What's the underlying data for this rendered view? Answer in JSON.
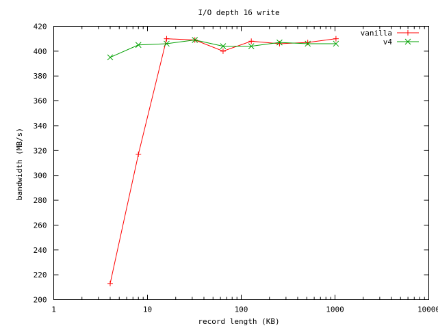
{
  "chart_data": {
    "type": "line",
    "title": "I/O depth 16 write",
    "xlabel": "record length (KB)",
    "ylabel": "bandwidth (MB/s)",
    "x_scale": "log",
    "xlim": [
      1,
      10000
    ],
    "ylim": [
      200,
      420
    ],
    "x_ticks": [
      1,
      10,
      100,
      1000,
      10000
    ],
    "x_tick_labels": [
      "1",
      "10",
      "100",
      "1000",
      "10000"
    ],
    "y_ticks": [
      200,
      220,
      240,
      260,
      280,
      300,
      320,
      340,
      360,
      380,
      400,
      420
    ],
    "y_tick_labels": [
      "200",
      "220",
      "240",
      "260",
      "280",
      "300",
      "320",
      "340",
      "360",
      "380",
      "400",
      "420"
    ],
    "grid": false,
    "legend_position": "top-right",
    "series": [
      {
        "name": "vanilla",
        "color": "#ff0000",
        "marker": "plus",
        "points": [
          [
            4,
            213
          ],
          [
            8,
            317
          ],
          [
            16,
            410
          ],
          [
            32,
            409
          ],
          [
            64,
            400
          ],
          [
            128,
            408
          ],
          [
            256,
            406
          ],
          [
            512,
            407
          ],
          [
            1024,
            410
          ]
        ]
      },
      {
        "name": "v4",
        "color": "#00a000",
        "marker": "cross",
        "points": [
          [
            4,
            395
          ],
          [
            8,
            405
          ],
          [
            16,
            406
          ],
          [
            32,
            409
          ],
          [
            64,
            404
          ],
          [
            128,
            404
          ],
          [
            256,
            407
          ],
          [
            512,
            406
          ],
          [
            1024,
            406
          ]
        ]
      }
    ]
  }
}
